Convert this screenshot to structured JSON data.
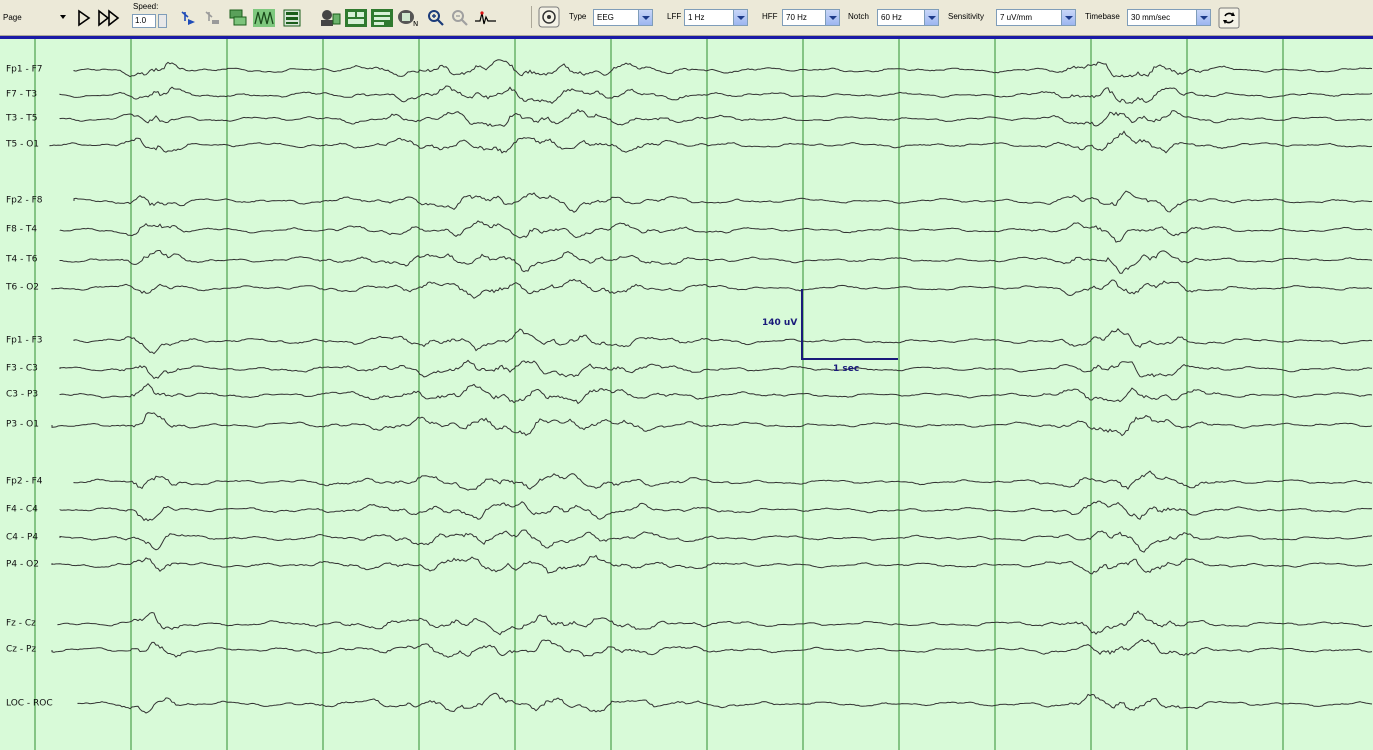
{
  "toolbar": {
    "page_label": "Page",
    "speed_label": "Speed:",
    "speed_value": "1.0",
    "type_label": "Type",
    "type_value": "EEG",
    "lff_label": "LFF",
    "lff_value": "1 Hz",
    "hff_label": "HFF",
    "hff_value": "70 Hz",
    "notch_label": "Notch",
    "notch_value": "60 Hz",
    "sensitivity_label": "Sensitivity",
    "sensitivity_value": "7 uV/mm",
    "timebase_label": "Timebase",
    "timebase_value": "30 mm/sec",
    "icons": [
      "page-dropdown-icon",
      "play-icon",
      "fast-forward-icon",
      "marker-select-icon",
      "marker-clear-icon",
      "montage-icon",
      "waveform-icon",
      "grid-icon",
      "patient-icon",
      "report-icon",
      "review-icon",
      "note-icon",
      "zoom-in-icon",
      "zoom-out-icon",
      "spike-icon",
      "video-icon",
      "refresh-icon"
    ]
  },
  "channels": [
    {
      "label": "Fp1 - F7"
    },
    {
      "label": "F7 - T3"
    },
    {
      "label": "T3 - T5"
    },
    {
      "label": "T5 - O1"
    },
    {
      "label": "Fp2 - F8"
    },
    {
      "label": "F8 - T4"
    },
    {
      "label": "T4 - T6"
    },
    {
      "label": "T6 - O2"
    },
    {
      "label": "Fp1 - F3"
    },
    {
      "label": "F3 - C3"
    },
    {
      "label": "C3 - P3"
    },
    {
      "label": "P3 - O1"
    },
    {
      "label": "Fp2 - F4"
    },
    {
      "label": "F4 - C4"
    },
    {
      "label": "C4 - P4"
    },
    {
      "label": "P4 - O2"
    },
    {
      "label": "Fz - Cz"
    },
    {
      "label": "Cz - Pz"
    },
    {
      "label": "LOC - ROC"
    }
  ],
  "calibration": {
    "amplitude": "140 uV",
    "duration": "1 sec"
  },
  "colors": {
    "background": "#d8fad8",
    "gridline": "#2f8f2f",
    "trace": "#333333",
    "calibration": "#1a1a7a",
    "toolbar": "#ece9d8",
    "rule": "#1a1aa6"
  }
}
